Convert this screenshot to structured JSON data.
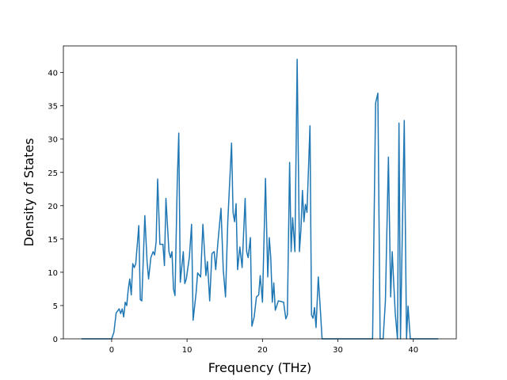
{
  "chart_data": {
    "type": "line",
    "x_label": "Frequency (THz)",
    "y_label": "Density of States",
    "color": "#1f77b4",
    "xlim": [
      -6.4,
      45.7
    ],
    "ylim": [
      0,
      44
    ],
    "xticks": [
      0,
      10,
      20,
      30,
      40
    ],
    "yticks": [
      0,
      5,
      10,
      15,
      20,
      25,
      30,
      35,
      40
    ],
    "x": [
      -4.0,
      0.0,
      0.3,
      0.6,
      1.0,
      1.2,
      1.4,
      1.6,
      1.8,
      2.0,
      2.2,
      2.4,
      2.6,
      2.8,
      3.0,
      3.2,
      3.6,
      3.8,
      4.0,
      4.4,
      4.7,
      4.9,
      5.2,
      5.5,
      5.7,
      5.9,
      6.1,
      6.4,
      6.8,
      7.0,
      7.2,
      7.6,
      7.8,
      8.0,
      8.2,
      8.4,
      8.7,
      8.9,
      9.1,
      9.5,
      9.7,
      9.9,
      10.3,
      10.6,
      10.8,
      11.2,
      11.4,
      11.8,
      12.1,
      12.5,
      12.7,
      13.0,
      13.3,
      13.6,
      13.8,
      14.1,
      14.5,
      14.8,
      15.1,
      15.4,
      15.9,
      16.1,
      16.3,
      16.5,
      16.7,
      17.0,
      17.3,
      17.7,
      17.9,
      18.1,
      18.4,
      18.6,
      18.9,
      19.2,
      19.5,
      19.7,
      20.0,
      20.4,
      20.7,
      20.9,
      21.1,
      21.3,
      21.5,
      21.7,
      22.1,
      22.5,
      22.8,
      23.1,
      23.3,
      23.6,
      23.8,
      24.0,
      24.3,
      24.6,
      24.9,
      25.1,
      25.3,
      25.5,
      25.7,
      25.9,
      26.3,
      26.5,
      26.7,
      26.9,
      27.1,
      27.4,
      27.7,
      27.9,
      34.6,
      35.0,
      35.3,
      35.6,
      36.0,
      36.3,
      36.7,
      37.0,
      37.2,
      37.6,
      37.9,
      38.1,
      38.3,
      38.8,
      39.1,
      39.3,
      39.6,
      43.3
    ],
    "values": [
      0,
      0,
      1.0,
      3.9,
      4.5,
      3.8,
      4.5,
      3.3,
      5.5,
      5.0,
      7.4,
      9.0,
      6.6,
      11.3,
      10.7,
      11.3,
      17.0,
      5.9,
      5.7,
      18.5,
      11.6,
      9.0,
      12.2,
      13.1,
      12.6,
      14.6,
      24.0,
      14.2,
      14.2,
      11.0,
      21.1,
      13.1,
      12.2,
      13.1,
      7.5,
      6.5,
      23.5,
      30.9,
      8.5,
      13.1,
      8.3,
      9.0,
      12.2,
      17.2,
      2.8,
      6.9,
      9.9,
      9.3,
      17.2,
      9.5,
      11.6,
      5.7,
      12.8,
      13.1,
      10.4,
      14.6,
      19.6,
      10.4,
      6.3,
      17.6,
      29.4,
      19.0,
      17.6,
      20.3,
      10.4,
      13.8,
      10.7,
      21.1,
      13.1,
      12.2,
      15.2,
      1.9,
      3.3,
      6.3,
      6.6,
      9.5,
      5.5,
      24.1,
      9.3,
      15.2,
      12.2,
      5.5,
      8.4,
      4.3,
      5.7,
      5.6,
      5.5,
      3.0,
      3.6,
      26.5,
      13.1,
      18.2,
      13.1,
      42.0,
      13.1,
      16.4,
      22.3,
      17.6,
      20.2,
      19.0,
      32.0,
      3.6,
      3.1,
      4.7,
      1.7,
      9.3,
      3.9,
      0,
      0,
      35.4,
      36.9,
      0,
      0,
      5.7,
      27.3,
      6.3,
      13.1,
      3.9,
      0,
      32.4,
      0,
      32.8,
      0,
      4.9,
      0,
      0
    ]
  }
}
